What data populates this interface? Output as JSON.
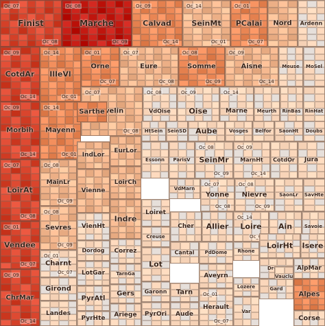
{
  "chart_data": {
    "type": "treemap",
    "colors": {
      "deep": "#c41a12",
      "dark": "#d9452d",
      "mid": "#ee8a58",
      "light": "#f6b990",
      "pale": "#f8d4b8",
      "grey": "#e6dfda",
      "border": "#5a463c"
    },
    "sublabels": [
      "Oc_07",
      "Oc_08",
      "Oc_09",
      "Oc_14",
      "Oc_01"
    ],
    "departments": [
      "Finist",
      "Marche",
      "Calvad",
      "SeinMt",
      "PCalai",
      "Nord",
      "Ardenn",
      "CotdAr",
      "IlleVl",
      "Orne",
      "Eure",
      "Somme",
      "Aisne",
      "Meuse",
      "MoSel",
      "Yvelin",
      "VdOise",
      "Oise",
      "Marne",
      "Meurth",
      "RinBas",
      "RinHat",
      "Morbih",
      "Mayenn",
      "Sarthe",
      "EurLor",
      "HtSein",
      "SeinSD",
      "Aube",
      "Vosges",
      "Belfor",
      "SaonHt",
      "Doubs",
      "IndLor",
      "Essonn",
      "ParisV",
      "SeinMr",
      "MarnHt",
      "CotdOr",
      "Jura",
      "LoirAt",
      "MainLr",
      "Vienne",
      "LoirCh",
      "VdMarn",
      "Yonne",
      "Nievre",
      "SaonLr",
      "SavHte",
      "Loiret",
      "Indre",
      "Cher",
      "Allier",
      "Loire",
      "Ain",
      "Savoie",
      "Sevres",
      "VienHt",
      "Creuse",
      "Vendee",
      "Correz",
      "Rhone",
      "LoirHt",
      "Isere",
      "Charnt",
      "Dordog",
      "Cantal",
      "PdDome",
      "AlpMar",
      "LotGar",
      "TarnGa",
      "Lot",
      "Aveyrn",
      "Drome",
      "Vauclu",
      "Girond",
      "Gers",
      "Garonn",
      "Tarn",
      "Lozere",
      "Gard",
      "Alpes",
      "ChrMar",
      "Landes",
      "PyrAtl",
      "PyrHte",
      "Ariege",
      "PyrOri",
      "Aude",
      "Herault",
      "Var",
      "Corse"
    ]
  }
}
